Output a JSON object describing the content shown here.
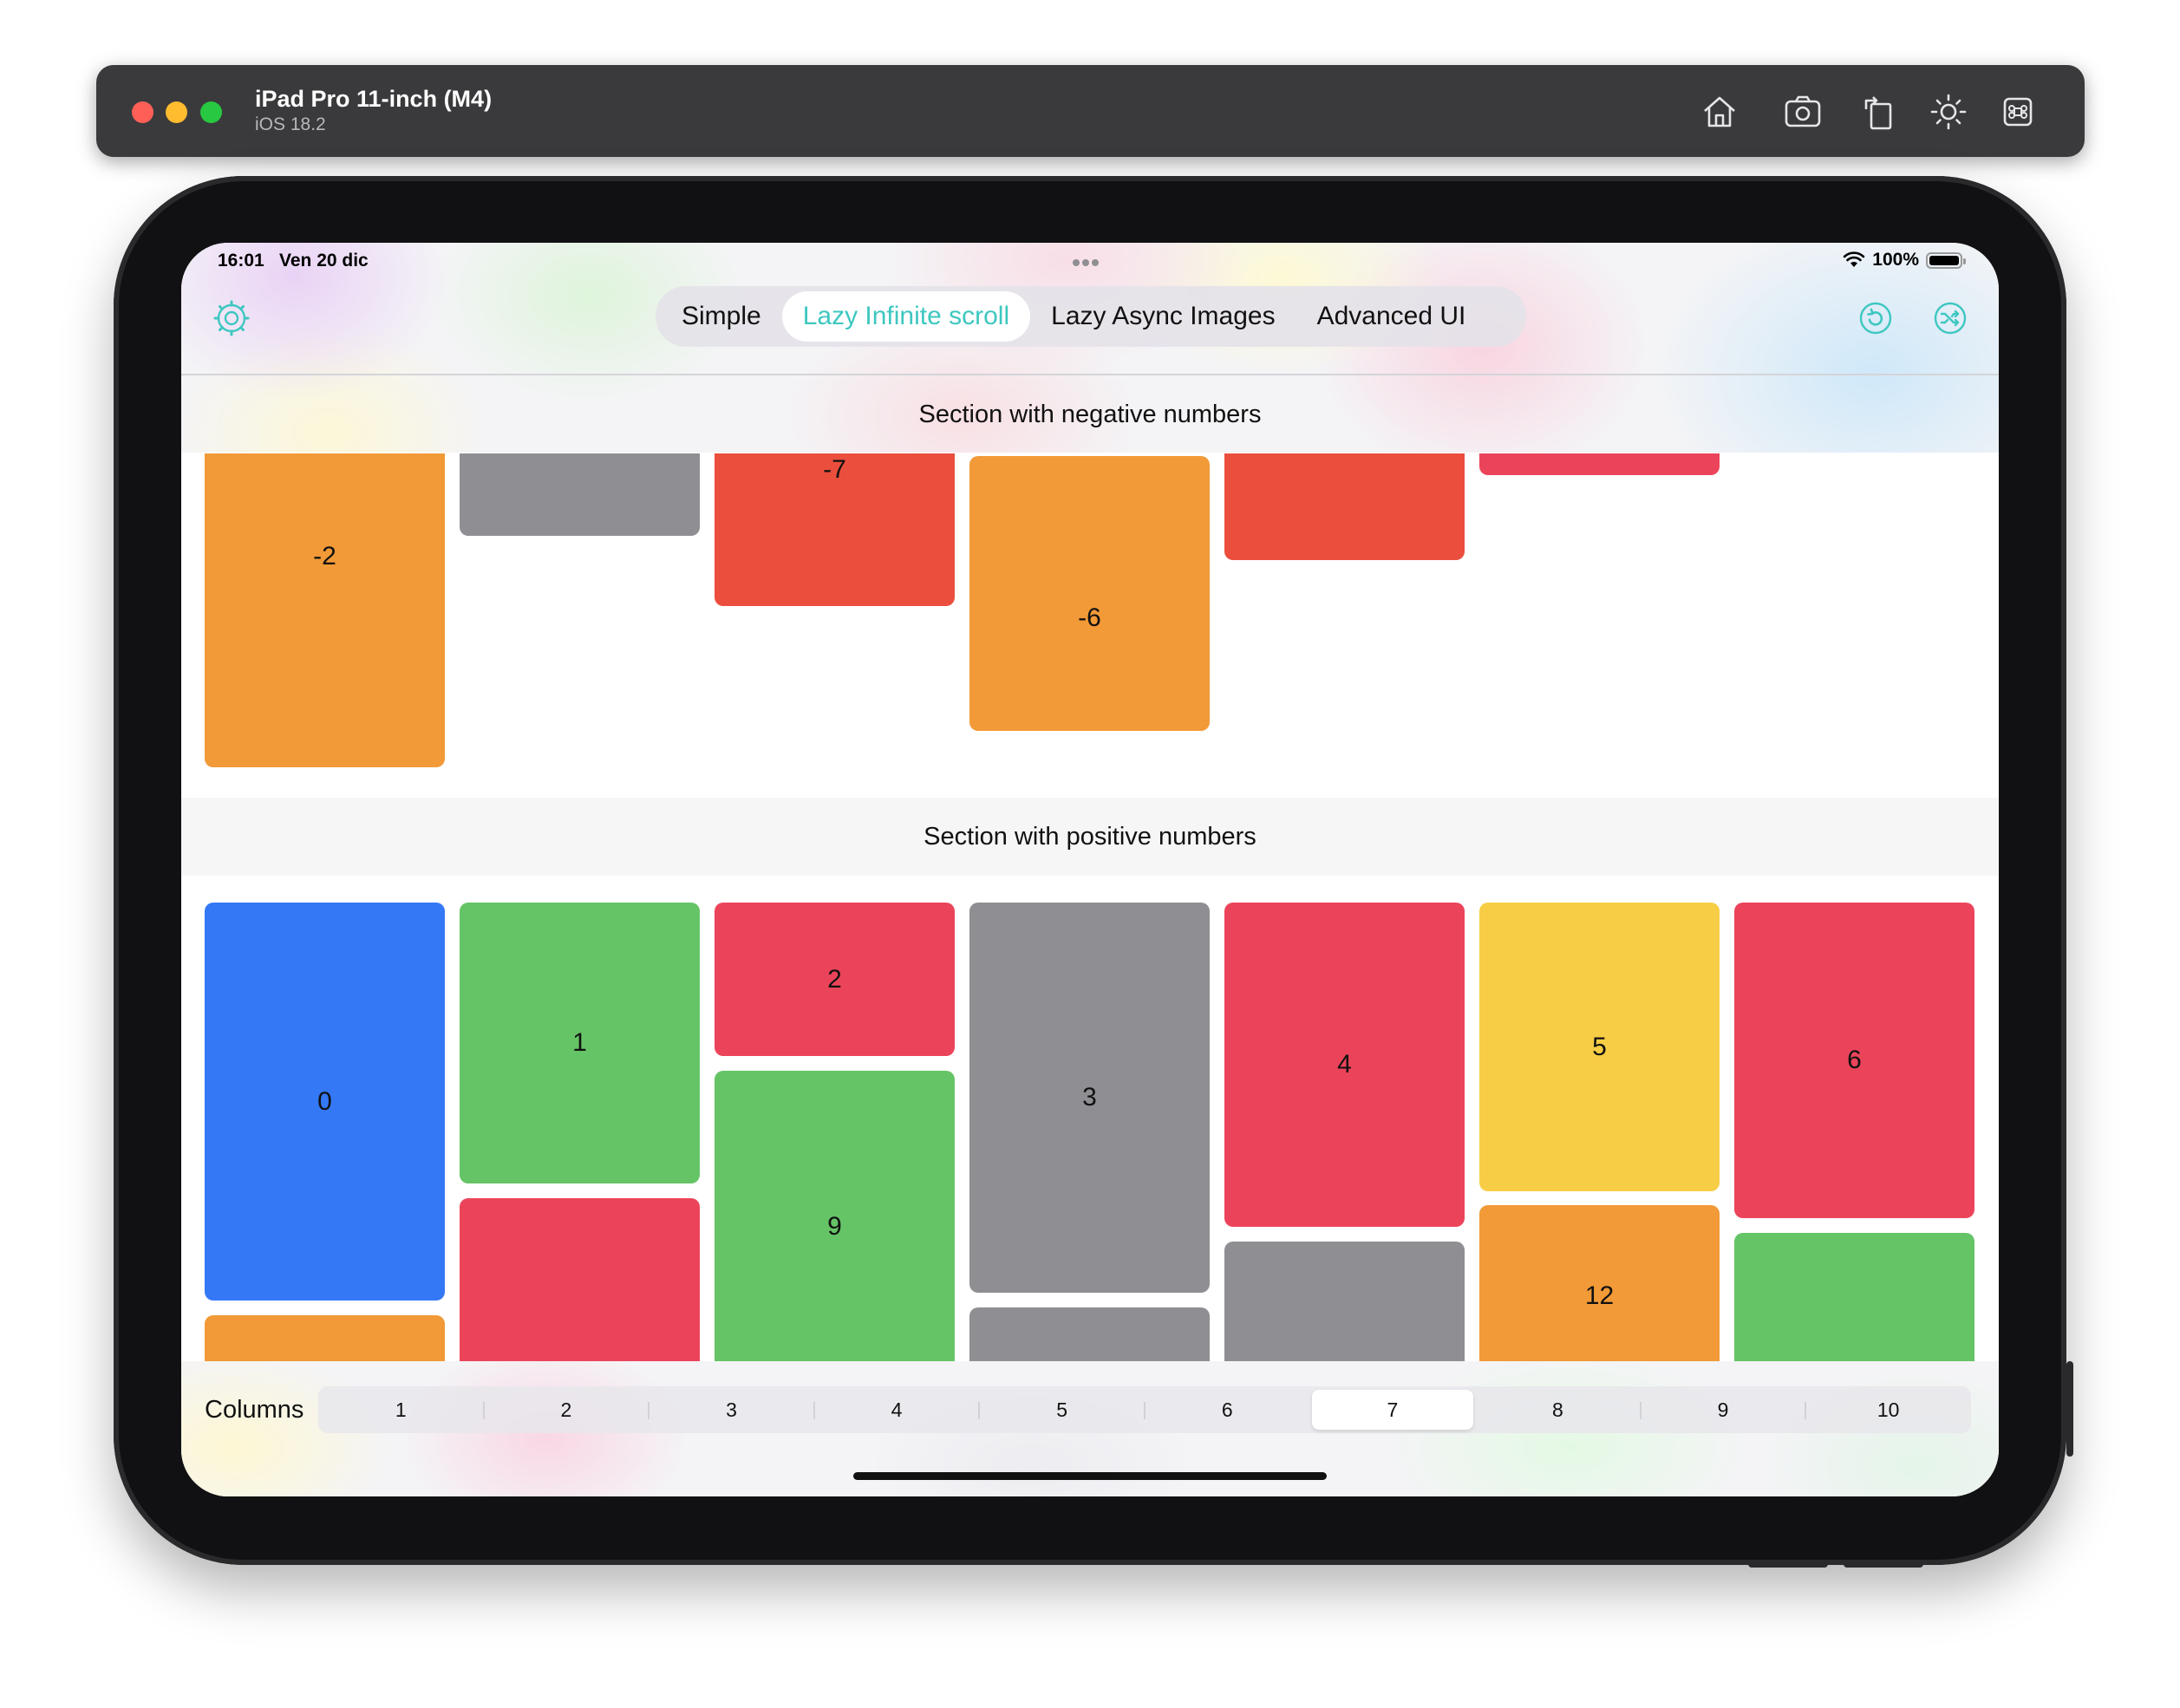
{
  "simulator": {
    "device_name": "iPad Pro 11-inch (M4)",
    "os_version": "iOS 18.2",
    "toolbar_icons": [
      "home-icon",
      "screenshot-icon",
      "rotate-icon",
      "appearance-icon",
      "keyboard-command-icon"
    ]
  },
  "status_bar": {
    "time": "16:01",
    "date": "Ven 20 dic",
    "battery": "100%"
  },
  "nav": {
    "left_icon": "settings-icon",
    "right_icons": [
      "refresh-icon",
      "shuffle-icon"
    ],
    "accent_color": "#3ec7c0",
    "tabs": [
      {
        "label": "Simple",
        "selected": false
      },
      {
        "label": "Lazy Infinite scroll",
        "selected": true
      },
      {
        "label": "Lazy Async Images",
        "selected": false
      },
      {
        "label": "Advanced UI",
        "selected": false
      }
    ]
  },
  "sections": {
    "negative_title": "Section with negative numbers",
    "positive_title": "Section with positive numbers"
  },
  "negative_tiles": [
    {
      "label": "-2",
      "color": "#f19a37"
    },
    {
      "label": "",
      "color": "#8e8e93"
    },
    {
      "label": "-7",
      "color": "#eb4e3d"
    },
    {
      "label": "-6",
      "color": "#f19a37"
    },
    {
      "label": "",
      "color": "#eb4e3d"
    },
    {
      "label": "",
      "color": "#eb445a"
    }
  ],
  "positive_tiles": [
    {
      "label": "0",
      "color": "#3478f6"
    },
    {
      "label": "",
      "color": "#f19a37"
    },
    {
      "label": "1",
      "color": "#65c466"
    },
    {
      "label": "",
      "color": "#eb445a"
    },
    {
      "label": "2",
      "color": "#eb445a"
    },
    {
      "label": "9",
      "color": "#65c466"
    },
    {
      "label": "3",
      "color": "#8e8e93"
    },
    {
      "label": "",
      "color": "#8e8e93"
    },
    {
      "label": "4",
      "color": "#eb445a"
    },
    {
      "label": "",
      "color": "#8e8e93"
    },
    {
      "label": "5",
      "color": "#f7cd45"
    },
    {
      "label": "12",
      "color": "#f19a37"
    },
    {
      "label": "6",
      "color": "#eb445a"
    },
    {
      "label": "",
      "color": "#65c466"
    }
  ],
  "columns_picker": {
    "label": "Columns",
    "options": [
      "1",
      "2",
      "3",
      "4",
      "5",
      "6",
      "7",
      "8",
      "9",
      "10"
    ],
    "selected": "7"
  }
}
